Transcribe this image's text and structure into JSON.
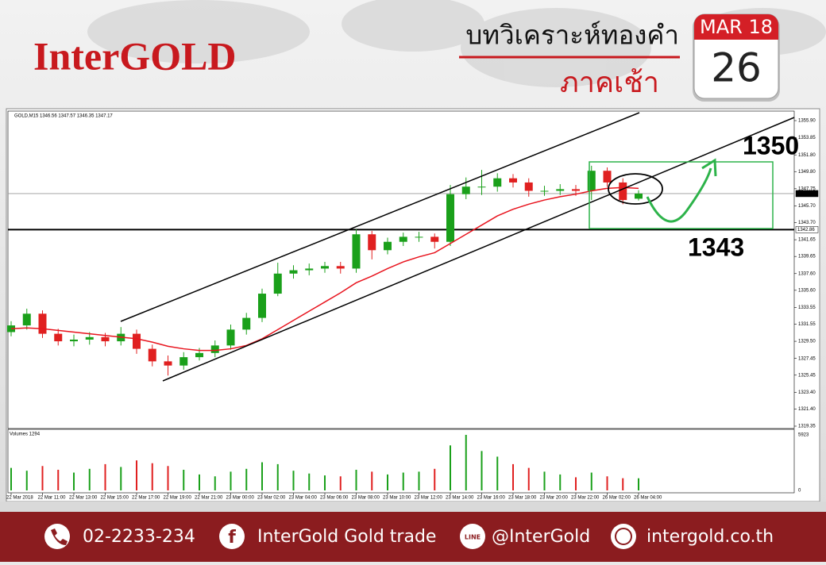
{
  "header": {
    "brand": "InterGOLD",
    "title": "บทวิเคราะห์ทองคำ",
    "subtitle": "ภาคเช้า",
    "calendar": {
      "month": "MAR 18",
      "day": "26"
    }
  },
  "chart_data": {
    "type": "candlestick",
    "title": "GOLD,M15  1346.56 1347.57 1346.35 1347.17",
    "open": [
      1330.6,
      1331.4,
      1332.8,
      1330.4,
      1329.5,
      1329.7,
      1330.0,
      1329.5,
      1330.4,
      1328.6,
      1327.1,
      1326.6,
      1327.6,
      1328.1,
      1329.0,
      1330.9,
      1332.3,
      1335.2,
      1337.6,
      1338.0,
      1338.2,
      1338.5,
      1338.2,
      1342.3,
      1340.4,
      1341.4,
      1342.0,
      1342.0,
      1341.4,
      1347.1,
      1348.0,
      1348.0,
      1349.0,
      1348.5,
      1347.5,
      1347.5,
      1347.7,
      1347.5,
      1349.9,
      1348.5,
      1346.56
    ],
    "high": [
      1331.9,
      1333.4,
      1333.2,
      1331.0,
      1330.3,
      1330.6,
      1330.5,
      1331.2,
      1330.9,
      1329.1,
      1327.8,
      1328.2,
      1328.7,
      1329.6,
      1331.5,
      1332.9,
      1335.8,
      1338.9,
      1338.6,
      1338.8,
      1339.0,
      1339.0,
      1342.9,
      1342.7,
      1341.9,
      1342.5,
      1342.6,
      1342.4,
      1348.2,
      1349.1,
      1350.0,
      1349.6,
      1349.5,
      1349.0,
      1348.1,
      1348.3,
      1348.2,
      1350.5,
      1350.3,
      1349.0,
      1347.57
    ],
    "low": [
      1330.1,
      1330.9,
      1329.9,
      1329.0,
      1328.9,
      1329.1,
      1328.9,
      1329.0,
      1328.0,
      1326.5,
      1325.4,
      1326.1,
      1327.2,
      1327.6,
      1328.5,
      1330.3,
      1331.8,
      1334.9,
      1337.0,
      1337.4,
      1337.7,
      1337.6,
      1337.7,
      1339.3,
      1339.9,
      1340.9,
      1341.4,
      1340.6,
      1340.9,
      1346.5,
      1347.0,
      1347.4,
      1347.9,
      1346.8,
      1346.9,
      1347.0,
      1346.9,
      1346.4,
      1348.0,
      1345.9,
      1346.35
    ],
    "close": [
      1331.4,
      1332.8,
      1330.4,
      1329.5,
      1329.7,
      1330.0,
      1329.5,
      1330.4,
      1328.6,
      1327.1,
      1326.6,
      1327.6,
      1328.1,
      1329.0,
      1330.9,
      1332.3,
      1335.2,
      1337.6,
      1338.0,
      1338.2,
      1338.5,
      1338.2,
      1342.3,
      1340.4,
      1341.4,
      1342.0,
      1342.0,
      1341.4,
      1347.1,
      1348.0,
      1348.0,
      1349.0,
      1348.5,
      1347.5,
      1347.5,
      1347.7,
      1347.5,
      1349.9,
      1348.5,
      1346.4,
      1347.17
    ],
    "ma": [
      1331.0,
      1331.1,
      1331.0,
      1330.8,
      1330.6,
      1330.4,
      1330.2,
      1330.0,
      1329.8,
      1329.4,
      1328.9,
      1328.6,
      1328.4,
      1328.4,
      1328.6,
      1329.0,
      1329.8,
      1330.9,
      1332.0,
      1333.1,
      1334.2,
      1335.3,
      1336.5,
      1337.3,
      1338.2,
      1339.0,
      1339.6,
      1340.1,
      1341.2,
      1342.3,
      1343.4,
      1344.5,
      1345.3,
      1345.9,
      1346.4,
      1346.8,
      1347.1,
      1347.5,
      1347.8,
      1347.9,
      1347.8
    ],
    "volume": [
      2400,
      2100,
      2600,
      2200,
      1900,
      2300,
      2800,
      2500,
      3200,
      2900,
      2600,
      2200,
      1700,
      1500,
      2000,
      2300,
      3000,
      2800,
      2100,
      1800,
      1600,
      1500,
      2200,
      2000,
      1700,
      1900,
      2000,
      2300,
      4800,
      5923,
      4200,
      3600,
      2800,
      2400,
      2000,
      1700,
      1400,
      1900,
      1500,
      1300,
      1294
    ],
    "up_color": "#1aa01a",
    "down_color": "#e02020",
    "ma_color": "#e8141e",
    "ylim": [
      1319.35,
      1355.9
    ],
    "yticks": [
      {
        "value": 1355.9,
        "label": "1355.90"
      },
      1353.85,
      {
        "value": 1351.8,
        "label": "1351.80"
      },
      {
        "value": 1349.8,
        "label": "1349.80"
      },
      1347.75,
      {
        "value": 1345.7,
        "label": "1345.70"
      },
      {
        "value": 1343.7,
        "label": "1343.70"
      },
      1341.65,
      1339.65,
      {
        "value": 1337.6,
        "label": "1337.60"
      },
      {
        "value": 1335.6,
        "label": "1335.60"
      },
      1333.55,
      1331.55,
      {
        "value": 1329.5,
        "label": "1329.50"
      },
      1327.45,
      1325.45,
      {
        "value": 1323.4,
        "label": "1323.40"
      },
      {
        "value": 1321.4,
        "label": "1321.40"
      },
      1319.35
    ],
    "xlim": [
      0,
      40
    ],
    "xticks": [
      {
        "value": 0,
        "label": "22 Mar 2018"
      },
      {
        "value": 2,
        "label": "22 Mar 11:00"
      },
      {
        "value": 4,
        "label": "22 Mar 13:00"
      },
      {
        "value": 6,
        "label": "22 Mar 15:00"
      },
      {
        "value": 8,
        "label": "22 Mar 17:00"
      },
      {
        "value": 10,
        "label": "22 Mar 19:00"
      },
      {
        "value": 12,
        "label": "22 Mar 21:00"
      },
      {
        "value": 14,
        "label": "23 Mar 00:00"
      },
      {
        "value": 16,
        "label": "23 Mar 02:00"
      },
      {
        "value": 18,
        "label": "23 Mar 04:00"
      },
      {
        "value": 20,
        "label": "23 Mar 06:00"
      },
      {
        "value": 22,
        "label": "23 Mar 08:00"
      },
      {
        "value": 24,
        "label": "23 Mar 10:00"
      },
      {
        "value": 26,
        "label": "23 Mar 12:00"
      },
      {
        "value": 28,
        "label": "23 Mar 14:00"
      },
      {
        "value": 30,
        "label": "23 Mar 16:00"
      },
      {
        "value": 32,
        "label": "23 Mar 18:00"
      },
      {
        "value": 34,
        "label": "23 Mar 20:00"
      },
      {
        "value": 36,
        "label": "23 Mar 22:00"
      },
      {
        "value": 38,
        "label": "26 Mar 02:00"
      },
      {
        "value": 40,
        "label": "26 Mar 04:00"
      }
    ],
    "price_lines": [
      1347.17,
      1342.86
    ],
    "price_line_colors": [
      "#999999",
      "#000000"
    ],
    "volume_label": "Volumes 1294",
    "volume_ylim": [
      0,
      5923
    ],
    "volume_yticks": [
      0,
      5923
    ],
    "level_labels": [
      1350,
      1343
    ]
  },
  "footer": {
    "phone": "02-2233-234",
    "facebook": "InterGold Gold trade",
    "line": "@InterGold",
    "website": "intergold.co.th"
  }
}
